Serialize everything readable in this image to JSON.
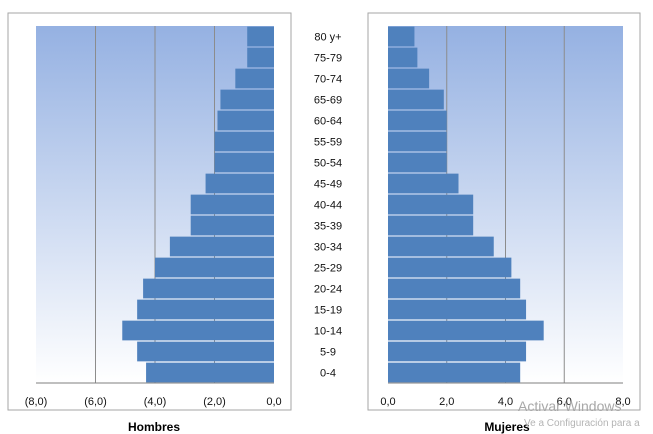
{
  "chart_data": {
    "type": "bar",
    "categories": [
      "0-4",
      "5-9",
      "10-14",
      "15-19",
      "20-24",
      "25-29",
      "30-34",
      "35-39",
      "40-44",
      "45-49",
      "50-54",
      "55-59",
      "60-64",
      "65-69",
      "70-74",
      "75-79",
      "80 y+"
    ],
    "series": [
      {
        "name": "Hombres",
        "values": [
          4.3,
          4.6,
          5.1,
          4.6,
          4.4,
          4.0,
          3.5,
          2.8,
          2.8,
          2.3,
          2.0,
          2.0,
          1.9,
          1.8,
          1.3,
          0.9,
          0.9
        ]
      },
      {
        "name": "Mujeres",
        "values": [
          4.5,
          4.7,
          5.3,
          4.7,
          4.5,
          4.2,
          3.6,
          2.9,
          2.9,
          2.4,
          2.0,
          2.0,
          2.0,
          1.9,
          1.4,
          1.0,
          0.9
        ]
      }
    ],
    "left_panel": {
      "xlabel": "Hombres",
      "xlim": [
        8,
        0
      ],
      "tick_labels": [
        "(8,0)",
        "(6,0)",
        "(4,0)",
        "(2,0)",
        "0,0"
      ]
    },
    "right_panel": {
      "xlabel": "Mujeres",
      "xlim": [
        0,
        8
      ],
      "tick_labels": [
        "0,0",
        "2,0",
        "4,0",
        "6,0",
        "8,0"
      ]
    },
    "grid": true,
    "bar_color": "#4f81bd"
  },
  "watermark": {
    "line1": "Activar Windows",
    "line2": "Ve a Configuración para a"
  }
}
